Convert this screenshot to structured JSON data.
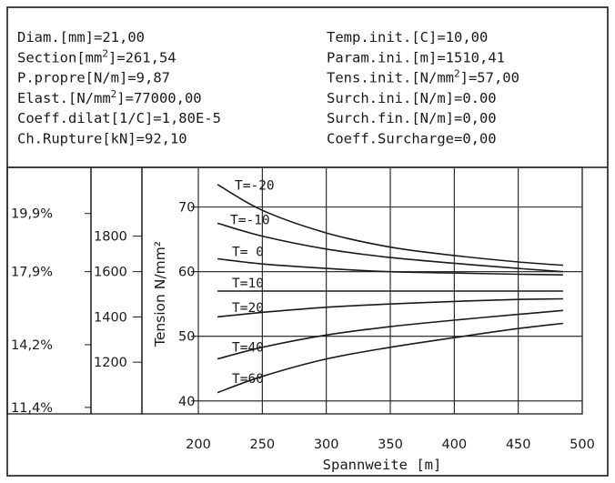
{
  "parameters": {
    "left": [
      {
        "label": "Diam.[mm]=",
        "value": "21,00"
      },
      {
        "label": "Section[mm",
        "sup": "2",
        "label_tail": "]=",
        "value": "261,54"
      },
      {
        "label": "P.propre[N/m]=",
        "value": "9,87"
      },
      {
        "label": "Elast.[N/mm",
        "sup": "2",
        "label_tail": "]=",
        "value": "77000,00"
      },
      {
        "label": "Coeff.dilat[1/C]=",
        "value": "1,80E-5"
      },
      {
        "label": "Ch.Rupture[kN]=",
        "value": "92,10"
      }
    ],
    "right": [
      {
        "label": "Temp.init.[C]=",
        "value": "10,00"
      },
      {
        "label": "Param.ini.[m]=",
        "value": "1510,41"
      },
      {
        "label": "Tens.init.[N/mm",
        "sup": "2",
        "label_tail": "]=",
        "value": "57,00"
      },
      {
        "label": "Surch.ini.[N/m]=",
        "value": "0.00"
      },
      {
        "label": "Surch.fin.[N/m]=",
        "value": "0,00"
      },
      {
        "label": "Coeff.Surcharge=",
        "value": "0,00"
      }
    ]
  },
  "chart_data": {
    "type": "line",
    "xlabel": "Spannweite [m]",
    "ylabel": "Tension N/mm²",
    "xlim": [
      200,
      500
    ],
    "ylim": [
      38,
      76
    ],
    "x_ticks": [
      200,
      250,
      300,
      350,
      400,
      450,
      500
    ],
    "y_ticks": [
      40,
      50,
      60,
      70
    ],
    "auxiliary_scales": {
      "percent": {
        "ticks": [
          {
            "label": "19,9%",
            "value": 69
          },
          {
            "label": "17,9%",
            "value": 60
          },
          {
            "label": "14,2%",
            "value": 48.7
          },
          {
            "label": "11,4%",
            "value": 39
          }
        ]
      },
      "parameter": {
        "ticks": [
          {
            "label": "1800",
            "value": 65.5
          },
          {
            "label": "1600",
            "value": 60
          },
          {
            "label": "1400",
            "value": 53
          },
          {
            "label": "1200",
            "value": 46
          }
        ]
      }
    },
    "grid": true,
    "series": [
      {
        "name": "T=-20",
        "x": [
          215,
          250,
          300,
          350,
          400,
          450,
          485
        ],
        "y": [
          73.5,
          69.5,
          66.0,
          63.8,
          62.5,
          61.5,
          61.0
        ]
      },
      {
        "name": "T=-10",
        "x": [
          215,
          250,
          300,
          350,
          400,
          450,
          485
        ],
        "y": [
          67.5,
          65.5,
          63.5,
          62.2,
          61.3,
          60.5,
          60.0
        ]
      },
      {
        "name": "T= 0",
        "x": [
          215,
          250,
          300,
          350,
          400,
          450,
          485
        ],
        "y": [
          62.0,
          61.2,
          60.5,
          60.0,
          59.8,
          59.6,
          59.5
        ]
      },
      {
        "name": "T=10",
        "x": [
          215,
          250,
          300,
          350,
          400,
          450,
          485
        ],
        "y": [
          57.0,
          57.0,
          57.0,
          57.0,
          57.0,
          57.0,
          57.0
        ]
      },
      {
        "name": "T=20",
        "x": [
          215,
          250,
          300,
          350,
          400,
          450,
          485
        ],
        "y": [
          53.0,
          53.7,
          54.5,
          55.0,
          55.4,
          55.7,
          55.8
        ]
      },
      {
        "name": "T=40",
        "x": [
          215,
          250,
          300,
          350,
          400,
          450,
          485
        ],
        "y": [
          46.5,
          48.3,
          50.2,
          51.5,
          52.5,
          53.4,
          54.0
        ]
      },
      {
        "name": "T=60",
        "x": [
          215,
          250,
          300,
          350,
          400,
          450,
          485
        ],
        "y": [
          41.3,
          43.8,
          46.5,
          48.3,
          49.8,
          51.2,
          52.0
        ]
      }
    ]
  }
}
